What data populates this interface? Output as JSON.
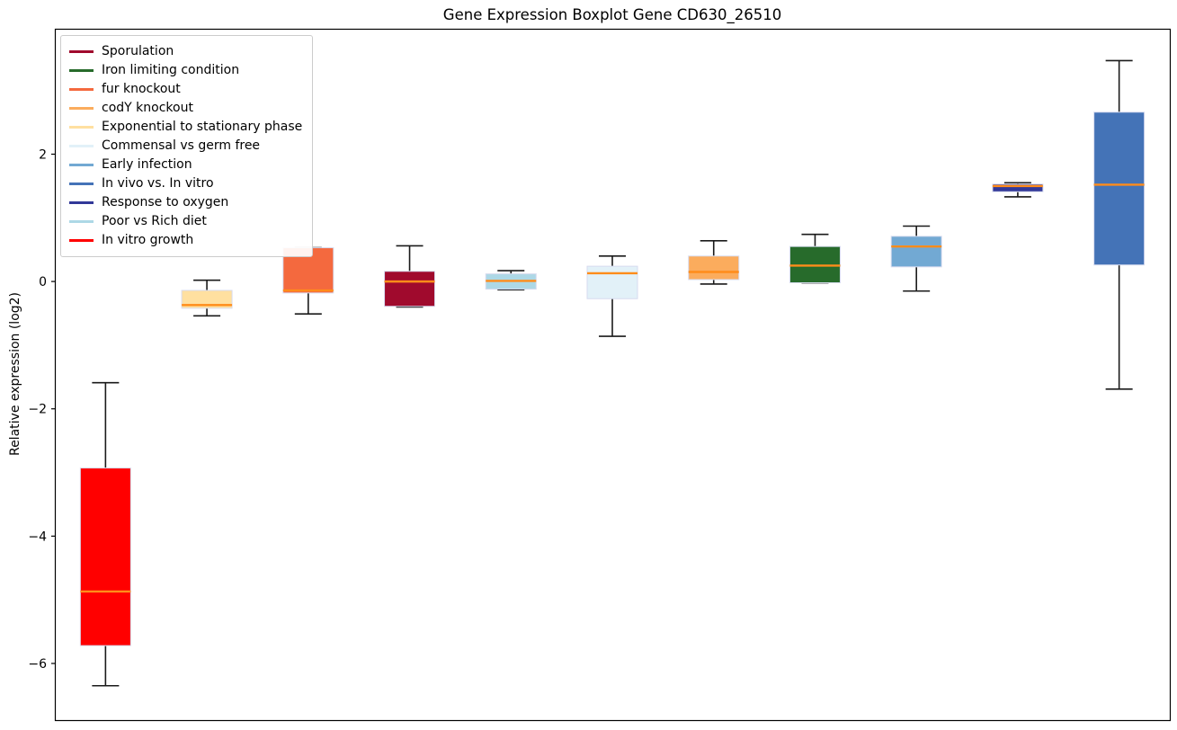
{
  "figure": {
    "background": "#FFFFFF"
  },
  "chart_data": {
    "type": "boxplot",
    "title": "Gene Expression Boxplot Gene CD630_26510",
    "ylabel": "Relative expression (log2)",
    "xlabel": "",
    "ylim": [
      -6.89,
      3.97
    ],
    "yticks": [
      2,
      0,
      -2,
      -4,
      -6
    ],
    "grid": false,
    "legend_position": "upper left",
    "median_color": "#FF8C1A",
    "whisker_color": "#1a1a1a",
    "box_edge_color": "#D7DBEF",
    "legend_order": [
      "Sporulation",
      "Iron limiting condition",
      "fur knockout",
      "codY knockout",
      "Exponential to stationary phase",
      "Commensal vs germ free",
      "Early infection",
      "In vivo vs. In vitro",
      "Response to oxygen",
      "Poor vs Rich diet",
      "In vitro growth"
    ],
    "boxes": [
      {
        "condition": "In vitro growth",
        "color": "#FF0000",
        "whisker_low": -6.35,
        "q1": -5.72,
        "median": -4.87,
        "q3": -2.93,
        "whisker_high": -1.59
      },
      {
        "condition": "Exponential to stationary phase",
        "color": "#FFE0A0",
        "whisker_low": -0.54,
        "q1": -0.42,
        "median": -0.37,
        "q3": -0.14,
        "whisker_high": 0.02
      },
      {
        "condition": "fur knockout",
        "color": "#F4693E",
        "whisker_low": -0.51,
        "q1": -0.18,
        "median": -0.14,
        "q3": 0.53,
        "whisker_high": 0.53
      },
      {
        "condition": "Sporulation",
        "color": "#A00A2D",
        "whisker_low": -0.4,
        "q1": -0.39,
        "median": 0.0,
        "q3": 0.16,
        "whisker_high": 0.56
      },
      {
        "condition": "Poor vs Rich diet",
        "color": "#ADD8E6",
        "whisker_low": -0.13,
        "q1": -0.12,
        "median": 0.01,
        "q3": 0.12,
        "whisker_high": 0.17
      },
      {
        "condition": "Commensal vs germ free",
        "color": "#E2F1F8",
        "whisker_low": -0.86,
        "q1": -0.27,
        "median": 0.13,
        "q3": 0.24,
        "whisker_high": 0.4
      },
      {
        "condition": "codY knockout",
        "color": "#FBAC5D",
        "whisker_low": -0.04,
        "q1": 0.03,
        "median": 0.15,
        "q3": 0.4,
        "whisker_high": 0.64
      },
      {
        "condition": "Iron limiting condition",
        "color": "#276B2B",
        "whisker_low": -0.02,
        "q1": -0.02,
        "median": 0.25,
        "q3": 0.55,
        "whisker_high": 0.74
      },
      {
        "condition": "Early infection",
        "color": "#72A9D3",
        "whisker_low": -0.15,
        "q1": 0.23,
        "median": 0.55,
        "q3": 0.71,
        "whisker_high": 0.87
      },
      {
        "condition": "Response to oxygen",
        "color": "#323898",
        "whisker_low": 1.33,
        "q1": 1.41,
        "median": 1.5,
        "q3": 1.53,
        "whisker_high": 1.55
      },
      {
        "condition": "In vivo vs. In vitro",
        "color": "#4473B7",
        "whisker_low": -1.69,
        "q1": 0.26,
        "median": 1.52,
        "q3": 2.66,
        "whisker_high": 3.47
      }
    ]
  }
}
